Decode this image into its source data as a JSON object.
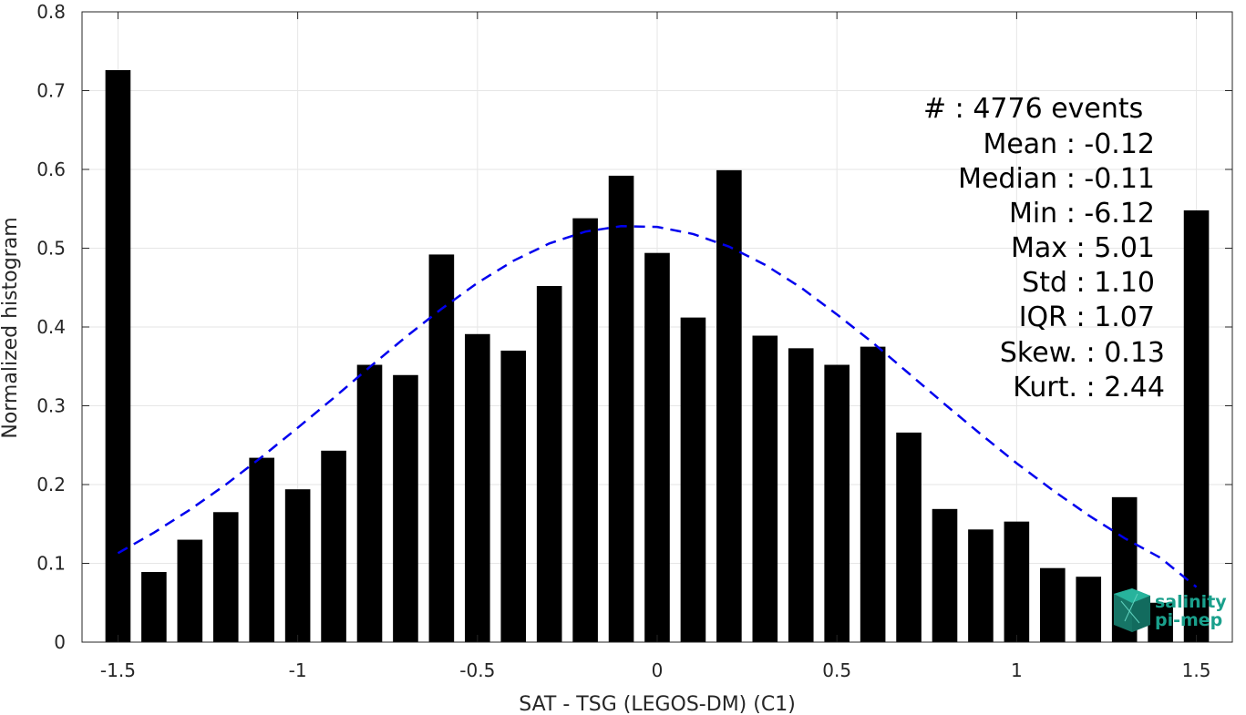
{
  "chart_data": {
    "type": "bar",
    "title": "",
    "xlabel": "SAT - TSG (LEGOS-DM) (C1)",
    "ylabel": "Normalized histogram",
    "xlim": [
      -1.6,
      1.6
    ],
    "ylim": [
      0,
      0.8
    ],
    "x_ticks": [
      -1.5,
      -1,
      -0.5,
      0,
      0.5,
      1,
      1.5
    ],
    "x_tick_labels": [
      "-1.5",
      "-1",
      "-0.5",
      "0",
      "0.5",
      "1",
      "1.5"
    ],
    "y_ticks": [
      0,
      0.1,
      0.2,
      0.3,
      0.4,
      0.5,
      0.6,
      0.7,
      0.8
    ],
    "y_tick_labels": [
      "0",
      "0.1",
      "0.2",
      "0.3",
      "0.4",
      "0.5",
      "0.6",
      "0.7",
      "0.8"
    ],
    "grid": true,
    "bar_color": "#000000",
    "bar_width": 0.07,
    "x": [
      -1.5,
      -1.4,
      -1.3,
      -1.2,
      -1.1,
      -1.0,
      -0.9,
      -0.8,
      -0.7,
      -0.6,
      -0.5,
      -0.4,
      -0.3,
      -0.2,
      -0.1,
      0.0,
      0.1,
      0.2,
      0.3,
      0.4,
      0.5,
      0.6,
      0.7,
      0.8,
      0.9,
      1.0,
      1.1,
      1.2,
      1.3,
      1.4,
      1.5
    ],
    "values": [
      0.726,
      0.089,
      0.13,
      0.165,
      0.234,
      0.194,
      0.243,
      0.352,
      0.339,
      0.492,
      0.391,
      0.37,
      0.452,
      0.538,
      0.592,
      0.494,
      0.412,
      0.599,
      0.389,
      0.373,
      0.352,
      0.375,
      0.266,
      0.169,
      0.143,
      0.153,
      0.094,
      0.083,
      0.184,
      0.05,
      0.548
    ],
    "fit_curve": {
      "style": "dashed",
      "color": "#0000ee",
      "x_range": [
        -1.5,
        1.5
      ],
      "x": [
        -1.5,
        -1.4,
        -1.3,
        -1.2,
        -1.1,
        -1.0,
        -0.9,
        -0.8,
        -0.7,
        -0.6,
        -0.5,
        -0.4,
        -0.3,
        -0.2,
        -0.1,
        0.0,
        0.1,
        0.2,
        0.3,
        0.4,
        0.5,
        0.6,
        0.7,
        0.8,
        0.9,
        1.0,
        1.1,
        1.2,
        1.3,
        1.4,
        1.5
      ],
      "y": [
        0.113,
        0.139,
        0.168,
        0.2,
        0.235,
        0.272,
        0.31,
        0.349,
        0.387,
        0.423,
        0.456,
        0.484,
        0.506,
        0.521,
        0.528,
        0.527,
        0.518,
        0.502,
        0.479,
        0.45,
        0.416,
        0.38,
        0.341,
        0.302,
        0.264,
        0.227,
        0.193,
        0.161,
        0.132,
        0.107,
        0.07
      ]
    },
    "annotations": [
      "#  : 4776 events",
      "Mean : -0.12",
      "Median : -0.11",
      "Min : -6.12",
      "Max : 5.01",
      "Std : 1.10",
      "IQR : 1.07",
      "Skew. : 0.13",
      "Kurt. : 2.44"
    ]
  },
  "logo": {
    "line1": "salinity",
    "line2": "pi-mep",
    "color": "#1aa08c"
  }
}
